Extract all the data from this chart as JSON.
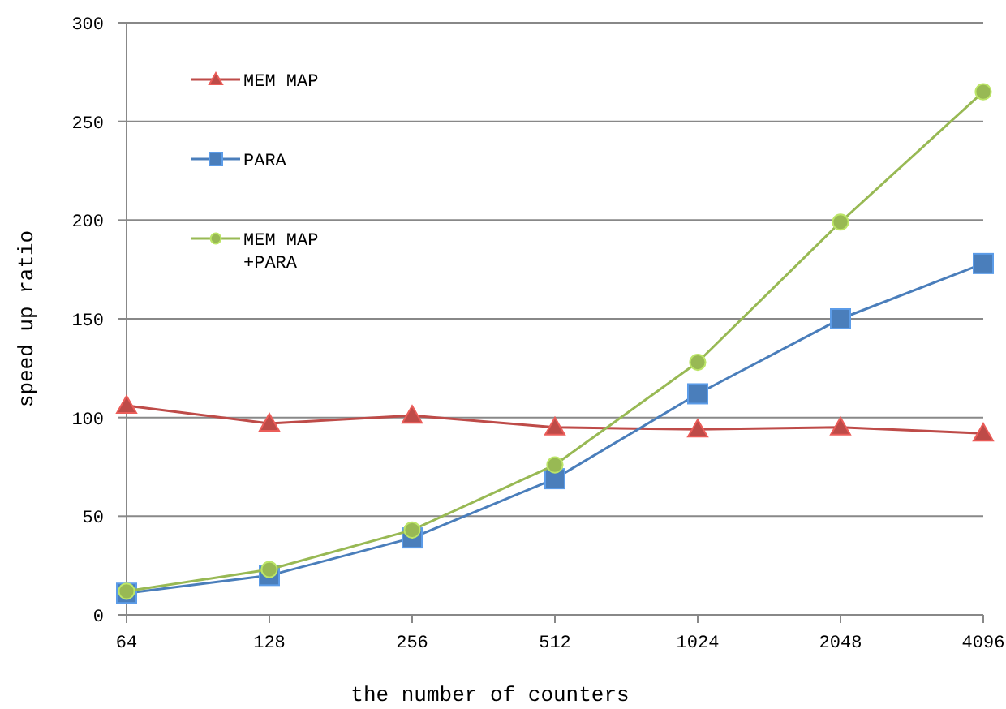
{
  "chart_data": {
    "type": "line",
    "xlabel": "the number of counters",
    "ylabel": "speed up ratio",
    "categories": [
      "64",
      "128",
      "256",
      "512",
      "1024",
      "2048",
      "4096"
    ],
    "series": [
      {
        "name": "MEM MAP",
        "color": "#be4b48",
        "marker": "triangle",
        "values": [
          106,
          97,
          101,
          95,
          94,
          95,
          92
        ]
      },
      {
        "name": "PARA",
        "color": "#4a7ebb",
        "marker": "square",
        "values": [
          11,
          20,
          39,
          69,
          112,
          150,
          178
        ]
      },
      {
        "name": "MEM MAP +PARA",
        "color": "#98b954",
        "marker": "circle",
        "values": [
          12,
          23,
          43,
          76,
          128,
          199,
          265
        ]
      }
    ],
    "ylim": [
      0,
      300
    ],
    "yticks": [
      0,
      50,
      100,
      150,
      200,
      250,
      300
    ],
    "grid": "y",
    "legend": "top left"
  }
}
